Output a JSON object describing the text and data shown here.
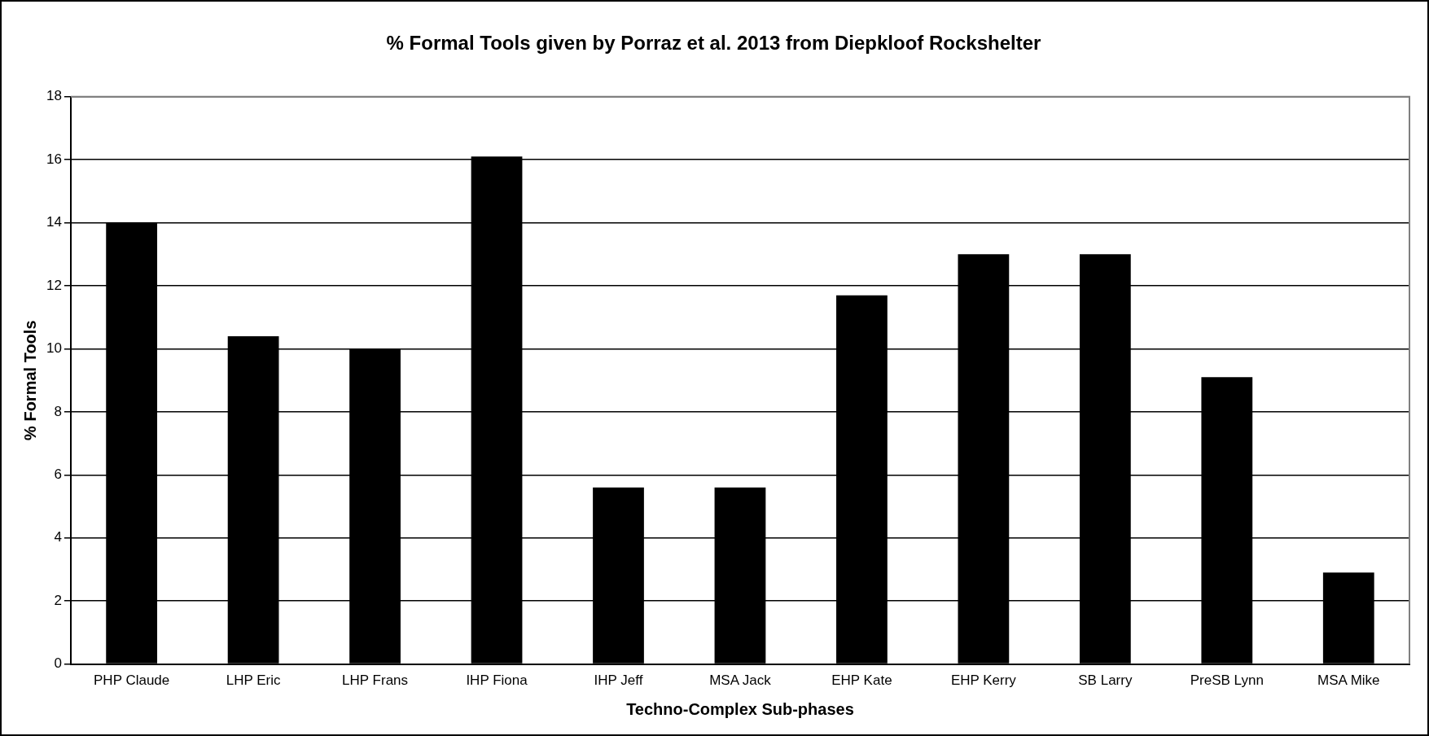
{
  "chart_data": {
    "type": "bar",
    "title": "% Formal Tools given by Porraz et al. 2013 from Diepkloof Rockshelter",
    "xlabel": "Techno-Complex Sub-phases",
    "ylabel": "% Formal Tools",
    "categories": [
      "PHP Claude",
      "LHP Eric",
      "LHP Frans",
      "IHP Fiona",
      "IHP Jeff",
      "MSA Jack",
      "EHP Kate",
      "EHP Kerry",
      "SB Larry",
      "PreSB Lynn",
      "MSA Mike"
    ],
    "values": [
      14,
      10.4,
      10,
      16.1,
      5.6,
      5.6,
      11.7,
      13,
      13,
      9.1,
      2.9
    ],
    "color": "#000000",
    "ylim": [
      0,
      18
    ],
    "yticks": [
      0,
      2,
      4,
      6,
      8,
      10,
      12,
      14,
      16,
      18
    ],
    "grid": "y",
    "legend": false
  }
}
